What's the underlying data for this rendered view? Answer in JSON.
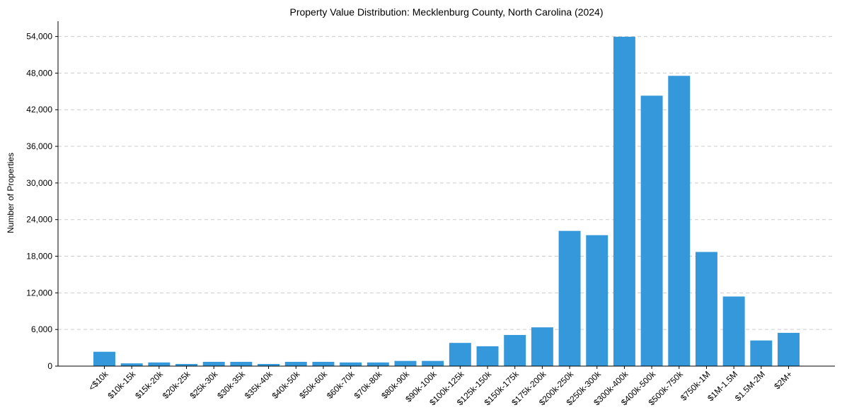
{
  "chart_data": {
    "type": "bar",
    "title": "Property Value Distribution: Mecklenburg County, North Carolina (2024)",
    "xlabel": "",
    "ylabel": "Number of Properties",
    "ylim": [
      0,
      56500
    ],
    "yticks": [
      0,
      6000,
      12000,
      18000,
      24000,
      30000,
      36000,
      42000,
      48000,
      54000
    ],
    "ytick_labels": [
      "0",
      "6,000",
      "12,000",
      "18,000",
      "24,000",
      "30,000",
      "36,000",
      "42,000",
      "48,000",
      "54,000"
    ],
    "grid": true,
    "categories": [
      "<$10k",
      "$10k-15k",
      "$15k-20k",
      "$20k-25k",
      "$25k-30k",
      "$30k-35k",
      "$35k-40k",
      "$40k-50k",
      "$50k-60k",
      "$60k-70k",
      "$70k-80k",
      "$80k-90k",
      "$90k-100k",
      "$100k-125k",
      "$125k-150k",
      "$150k-175k",
      "$175k-200k",
      "$200k-250k",
      "$250k-300k",
      "$300k-400k",
      "$400k-500k",
      "$500k-750k",
      "$750k-1M",
      "$1M-1.5M",
      "$1.5M-2M",
      "$2M+"
    ],
    "values": [
      2350,
      450,
      600,
      350,
      700,
      700,
      350,
      700,
      700,
      600,
      600,
      850,
      850,
      3800,
      3250,
      5100,
      6350,
      22150,
      21450,
      53950,
      44300,
      47550,
      18700,
      11400,
      4200,
      5450
    ],
    "color": "#3498db"
  }
}
